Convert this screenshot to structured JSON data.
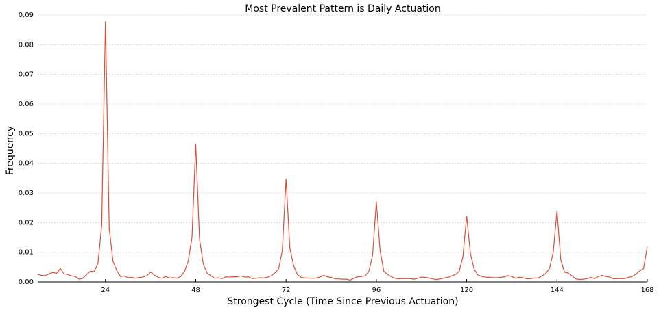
{
  "chart_data": {
    "type": "line",
    "title": "Most Prevalent Pattern is Daily Actuation",
    "x_label": "Strongest Cycle (Time Since Previous Actuation)",
    "y_label": "Frequency",
    "x": [
      6,
      7,
      8,
      9,
      10,
      11,
      12,
      13,
      14,
      15,
      16,
      17,
      18,
      19,
      20,
      21,
      22,
      23,
      24,
      25,
      26,
      27,
      28,
      29,
      30,
      31,
      32,
      33,
      34,
      35,
      36,
      37,
      38,
      39,
      40,
      41,
      42,
      43,
      44,
      45,
      46,
      47,
      48,
      49,
      50,
      51,
      52,
      53,
      54,
      55,
      56,
      57,
      58,
      59,
      60,
      61,
      62,
      63,
      64,
      65,
      66,
      67,
      68,
      69,
      70,
      71,
      72,
      73,
      74,
      75,
      76,
      77,
      78,
      79,
      80,
      81,
      82,
      83,
      84,
      85,
      86,
      87,
      88,
      89,
      90,
      91,
      92,
      93,
      94,
      95,
      96,
      97,
      98,
      99,
      100,
      101,
      102,
      103,
      104,
      105,
      106,
      107,
      108,
      109,
      110,
      111,
      112,
      113,
      114,
      115,
      116,
      117,
      118,
      119,
      120,
      121,
      122,
      123,
      124,
      125,
      126,
      127,
      128,
      129,
      130,
      131,
      132,
      133,
      134,
      135,
      136,
      137,
      138,
      139,
      140,
      141,
      142,
      143,
      144,
      145,
      146,
      147,
      148,
      149,
      150,
      151,
      152,
      153,
      154,
      155,
      156,
      157,
      158,
      159,
      160,
      161,
      162,
      163,
      164,
      165,
      166,
      167,
      168
    ],
    "series": [
      {
        "color": "#e24a33",
        "values": [
          0.0025,
          0.0022,
          0.0021,
          0.0027,
          0.0032,
          0.0029,
          0.0045,
          0.0027,
          0.0025,
          0.002,
          0.0018,
          0.0009,
          0.0012,
          0.0025,
          0.0036,
          0.0035,
          0.0062,
          0.019,
          0.088,
          0.018,
          0.007,
          0.0038,
          0.0018,
          0.002,
          0.0014,
          0.0015,
          0.0012,
          0.0015,
          0.0016,
          0.0021,
          0.0033,
          0.0023,
          0.0015,
          0.0012,
          0.0018,
          0.0013,
          0.0014,
          0.0012,
          0.0018,
          0.0035,
          0.007,
          0.015,
          0.0465,
          0.0145,
          0.006,
          0.003,
          0.0021,
          0.0012,
          0.0014,
          0.0011,
          0.0017,
          0.0016,
          0.0017,
          0.0017,
          0.002,
          0.0016,
          0.0017,
          0.0011,
          0.0012,
          0.0014,
          0.0013,
          0.0015,
          0.002,
          0.003,
          0.0043,
          0.0105,
          0.0348,
          0.0115,
          0.0055,
          0.0025,
          0.0015,
          0.0013,
          0.0013,
          0.0012,
          0.0013,
          0.0016,
          0.0022,
          0.0017,
          0.0015,
          0.001,
          0.001,
          0.0009,
          0.0009,
          0.0006,
          0.0012,
          0.0017,
          0.0018,
          0.002,
          0.0035,
          0.009,
          0.027,
          0.0105,
          0.0035,
          0.0025,
          0.0017,
          0.0012,
          0.001,
          0.0011,
          0.0011,
          0.0011,
          0.0009,
          0.0012,
          0.0016,
          0.0015,
          0.0013,
          0.001,
          0.0008,
          0.001,
          0.0013,
          0.0015,
          0.002,
          0.0025,
          0.0035,
          0.0085,
          0.0222,
          0.0095,
          0.0042,
          0.0023,
          0.0018,
          0.0016,
          0.0015,
          0.0014,
          0.0014,
          0.0015,
          0.0017,
          0.0021,
          0.0018,
          0.0012,
          0.0016,
          0.0014,
          0.001,
          0.0011,
          0.0013,
          0.0013,
          0.002,
          0.0028,
          0.0045,
          0.01,
          0.024,
          0.0075,
          0.0033,
          0.003,
          0.002,
          0.001,
          0.0008,
          0.0009,
          0.0011,
          0.0015,
          0.0011,
          0.0018,
          0.0022,
          0.0018,
          0.0016,
          0.001,
          0.0011,
          0.0011,
          0.0011,
          0.0015,
          0.0018,
          0.0026,
          0.0037,
          0.0045,
          0.0118
        ]
      }
    ],
    "xlim": [
      6,
      168
    ],
    "xticks": [
      24,
      48,
      72,
      96,
      120,
      144,
      168
    ],
    "ylim": [
      0,
      0.09
    ],
    "yticks": [
      {
        "value": 0,
        "label": "0.00"
      },
      {
        "value": 0.01,
        "label": "0.01"
      },
      {
        "value": 0.02,
        "label": "0.02"
      },
      {
        "value": 0.03,
        "label": "0.03"
      },
      {
        "value": 0.04,
        "label": "0.04"
      },
      {
        "value": 0.05,
        "label": "0.05"
      },
      {
        "value": 0.06,
        "label": "0.06"
      },
      {
        "value": 0.07,
        "label": "0.07"
      },
      {
        "value": 0.08,
        "label": "0.08"
      },
      {
        "value": 0.09,
        "label": "0.09"
      }
    ],
    "grid": true
  }
}
